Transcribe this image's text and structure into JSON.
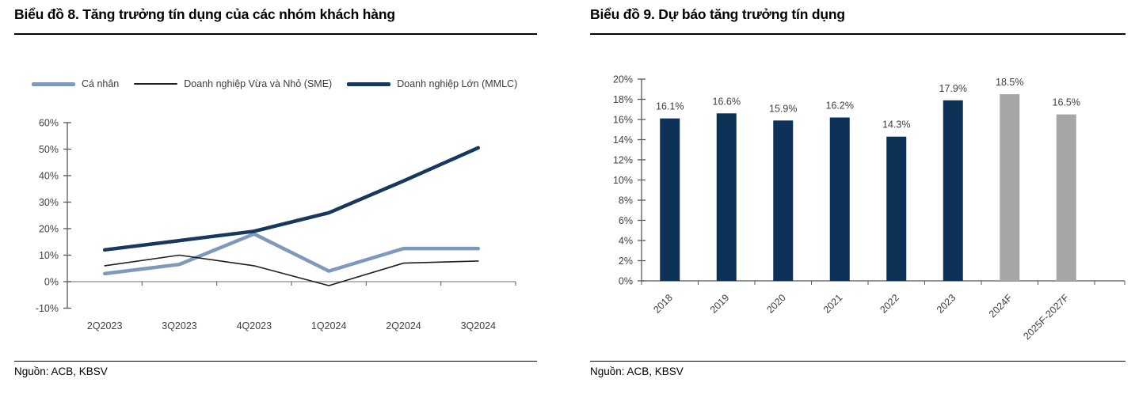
{
  "left": {
    "title": "Biểu đồ 8. Tăng trưởng tín dụng của các nhóm khách hàng",
    "source": "Nguồn: ACB, KBSV"
  },
  "right": {
    "title": "Biểu đồ 9. Dự báo tăng trưởng tín dụng",
    "source": "Nguồn: ACB, KBSV"
  },
  "colors": {
    "personal_line": "#7E99BC",
    "sme_line": "#1F1F1F",
    "mmlc_line": "#17375E",
    "bar_actual": "#0E3157",
    "bar_forecast": "#A6A6A6",
    "axis": "#595959",
    "zero_line": "#8C8C8C",
    "title_text": "#000000",
    "tick_text": "#404040"
  },
  "chart_data": [
    {
      "type": "line",
      "title": "Biểu đồ 8. Tăng trưởng tín dụng của các nhóm khách hàng",
      "categories": [
        "2Q2023",
        "3Q2023",
        "4Q2023",
        "1Q2024",
        "2Q2024",
        "3Q2024"
      ],
      "series": [
        {
          "name": "Cá nhân",
          "color": "#7E99BC",
          "width": 4.5,
          "values": [
            3,
            6.5,
            18,
            4,
            12.5,
            12.5
          ]
        },
        {
          "name": "Doanh nghiệp Vừa và Nhỏ (SME)",
          "color": "#1F1F1F",
          "width": 1.6,
          "values": [
            6,
            10,
            6,
            -1.5,
            7,
            7.8
          ]
        },
        {
          "name": "Doanh nghiệp Lớn (MMLC)",
          "color": "#17375E",
          "width": 4.5,
          "values": [
            12,
            15.5,
            19,
            26,
            38,
            50.5
          ]
        }
      ],
      "ylim": [
        -10,
        60
      ],
      "ytick_step": 10,
      "ytick_labels": [
        "-10%",
        "0%",
        "10%",
        "20%",
        "30%",
        "40%",
        "50%",
        "60%"
      ],
      "grid": false,
      "legend_position": "top"
    },
    {
      "type": "bar",
      "title": "Biểu đồ 9. Dự báo tăng trưởng tín dụng",
      "categories": [
        "2018",
        "2019",
        "2020",
        "2021",
        "2022",
        "2023",
        "2024F",
        "2025F-2027F"
      ],
      "values": [
        16.1,
        16.6,
        15.9,
        16.2,
        14.3,
        17.9,
        18.5,
        16.5
      ],
      "labels": [
        "16.1%",
        "16.6%",
        "15.9%",
        "16.2%",
        "14.3%",
        "17.9%",
        "18.5%",
        "16.5%"
      ],
      "bar_colors": [
        "#0E3157",
        "#0E3157",
        "#0E3157",
        "#0E3157",
        "#0E3157",
        "#0E3157",
        "#A6A6A6",
        "#A6A6A6"
      ],
      "ylim": [
        0,
        20
      ],
      "ytick_step": 2,
      "ytick_labels": [
        "0%",
        "2%",
        "4%",
        "6%",
        "8%",
        "10%",
        "12%",
        "14%",
        "16%",
        "18%",
        "20%"
      ],
      "grid": false,
      "xlabel": "",
      "ylabel": ""
    }
  ]
}
